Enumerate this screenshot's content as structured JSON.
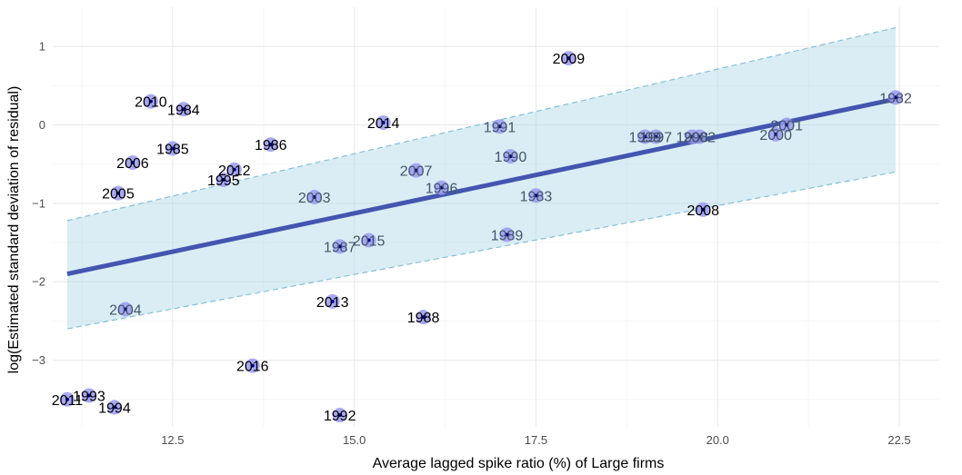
{
  "chart_data": {
    "type": "scatter",
    "title": "",
    "xlabel": "Average lagged spike ratio (%) of Large firms",
    "ylabel": "log(Estimated standard deviation of residual)",
    "xlim": [
      10.85,
      23.05
    ],
    "ylim": [
      -3.85,
      1.5
    ],
    "x_ticks": [
      12.5,
      15.0,
      17.5,
      20.0,
      22.5
    ],
    "x_tick_labels": [
      "12.5",
      "15.0",
      "17.5",
      "20.0",
      "22.5"
    ],
    "y_ticks": [
      -3,
      -2,
      -1,
      0,
      1
    ],
    "y_tick_labels": [
      "−3",
      "−2",
      "−1",
      "0",
      "1"
    ],
    "grid": true,
    "legend": "none",
    "colors": {
      "point_fill": "#9a9af0",
      "point_center": "#00008b",
      "fit_line": "#4455b0",
      "band_fill": "#add8e6",
      "band_edge": "#87bfd8",
      "label_in_band": "#44556a",
      "label_default": "#000000",
      "grid_major": "#ebebeb",
      "grid_minor": "#f5f5f5"
    },
    "points": [
      {
        "label": "1982",
        "x": 22.45,
        "y": 0.35
      },
      {
        "label": "1983",
        "x": 17.5,
        "y": -0.9
      },
      {
        "label": "1984",
        "x": 12.65,
        "y": 0.2
      },
      {
        "label": "1985",
        "x": 12.5,
        "y": -0.3
      },
      {
        "label": "1986",
        "x": 13.85,
        "y": -0.25
      },
      {
        "label": "1987",
        "x": 14.8,
        "y": -1.55
      },
      {
        "label": "1988",
        "x": 15.95,
        "y": -2.45
      },
      {
        "label": "1989",
        "x": 17.1,
        "y": -1.4
      },
      {
        "label": "1990",
        "x": 17.15,
        "y": -0.4
      },
      {
        "label": "1991",
        "x": 17.0,
        "y": -0.02
      },
      {
        "label": "1992",
        "x": 14.8,
        "y": -3.7
      },
      {
        "label": "1993",
        "x": 11.35,
        "y": -3.45
      },
      {
        "label": "1994",
        "x": 11.7,
        "y": -3.6
      },
      {
        "label": "1995",
        "x": 13.2,
        "y": -0.7
      },
      {
        "label": "1996",
        "x": 16.2,
        "y": -0.8
      },
      {
        "label": "1997",
        "x": 19.15,
        "y": -0.15
      },
      {
        "label": "1998",
        "x": 19.65,
        "y": -0.15
      },
      {
        "label": "1999",
        "x": 19.0,
        "y": -0.15
      },
      {
        "label": "2000",
        "x": 20.8,
        "y": -0.12
      },
      {
        "label": "2001",
        "x": 20.95,
        "y": 0.0
      },
      {
        "label": "2002",
        "x": 19.75,
        "y": -0.15
      },
      {
        "label": "2003",
        "x": 14.45,
        "y": -0.92
      },
      {
        "label": "2004",
        "x": 11.85,
        "y": -2.35
      },
      {
        "label": "2005",
        "x": 11.75,
        "y": -0.87
      },
      {
        "label": "2006",
        "x": 11.95,
        "y": -0.48
      },
      {
        "label": "2007",
        "x": 15.85,
        "y": -0.58
      },
      {
        "label": "2008",
        "x": 19.8,
        "y": -1.08
      },
      {
        "label": "2009",
        "x": 17.95,
        "y": 0.85
      },
      {
        "label": "2010",
        "x": 12.2,
        "y": 0.3
      },
      {
        "label": "2011",
        "x": 11.05,
        "y": -3.5
      },
      {
        "label": "2012",
        "x": 13.35,
        "y": -0.57
      },
      {
        "label": "2013",
        "x": 14.7,
        "y": -2.25
      },
      {
        "label": "2014",
        "x": 15.4,
        "y": 0.03
      },
      {
        "label": "2015",
        "x": 15.2,
        "y": -1.47
      },
      {
        "label": "2016",
        "x": 13.6,
        "y": -3.07
      }
    ],
    "fit": {
      "x": [
        11.05,
        22.45
      ],
      "y": [
        -1.9,
        0.33
      ],
      "band_upper": [
        -1.22,
        1.24
      ],
      "band_lower": [
        -2.6,
        -0.6
      ]
    }
  }
}
